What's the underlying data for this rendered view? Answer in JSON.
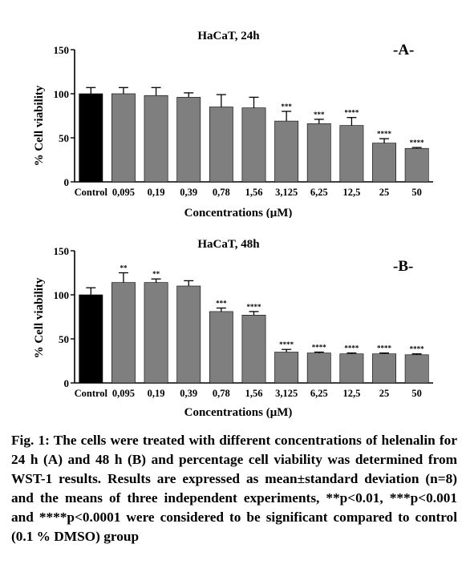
{
  "chart_data": [
    {
      "type": "bar",
      "panel": "-A-",
      "title": "HaCaT, 24h",
      "xlabel": "Concentrations (μM)",
      "ylabel": "% Cell viability",
      "ylim": [
        0,
        150
      ],
      "yticks": [
        "0",
        "50",
        "100",
        "150"
      ],
      "categories": [
        "Control",
        "0,095",
        "0,19",
        "0,39",
        "0,78",
        "1,56",
        "3,125",
        "6,25",
        "12,5",
        "25",
        "50"
      ],
      "values": [
        100,
        100,
        98,
        96,
        85,
        84,
        69,
        66,
        64,
        44,
        38
      ],
      "errors": [
        7,
        7,
        9,
        5,
        14,
        12,
        11,
        5,
        9,
        5,
        1
      ],
      "significance": [
        "",
        "",
        "",
        "",
        "",
        "",
        "***",
        "***",
        "****",
        "****",
        "****"
      ],
      "colors": [
        "#000000",
        "#7f7f7f",
        "#7f7f7f",
        "#7f7f7f",
        "#7f7f7f",
        "#7f7f7f",
        "#7f7f7f",
        "#7f7f7f",
        "#7f7f7f",
        "#7f7f7f",
        "#7f7f7f"
      ],
      "grid": false
    },
    {
      "type": "bar",
      "panel": "-B-",
      "title": "HaCaT, 48h",
      "xlabel": "Concentrations (μM)",
      "ylabel": "% Cell viability",
      "ylim": [
        0,
        150
      ],
      "yticks": [
        "0",
        "50",
        "100",
        "150"
      ],
      "categories": [
        "Control",
        "0,095",
        "0,19",
        "0,39",
        "0,78",
        "1,56",
        "3,125",
        "6,25",
        "12,5",
        "25",
        "50"
      ],
      "values": [
        100,
        114,
        114,
        110,
        81,
        77,
        35,
        34,
        33,
        33,
        32
      ],
      "errors": [
        8,
        11,
        4,
        6,
        4,
        4,
        3,
        1,
        1,
        1,
        1
      ],
      "significance": [
        "",
        "**",
        "**",
        "",
        "***",
        "****",
        "****",
        "****",
        "****",
        "****",
        "****"
      ],
      "colors": [
        "#000000",
        "#7f7f7f",
        "#7f7f7f",
        "#7f7f7f",
        "#7f7f7f",
        "#7f7f7f",
        "#7f7f7f",
        "#7f7f7f",
        "#7f7f7f",
        "#7f7f7f",
        "#7f7f7f"
      ],
      "grid": false
    }
  ],
  "caption": "Fig. 1: The cells were treated with different concentrations of helenalin for 24 h (A) and 48 h (B) and percentage cell viability was determined from WST-1 results. Results are expressed as mean±standard deviation (n=8) and the means of three independent experiments, **p<0.01, ***p<0.001 and ****p<0.0001 were considered to be significant compared to control (0.1 % DMSO) group"
}
